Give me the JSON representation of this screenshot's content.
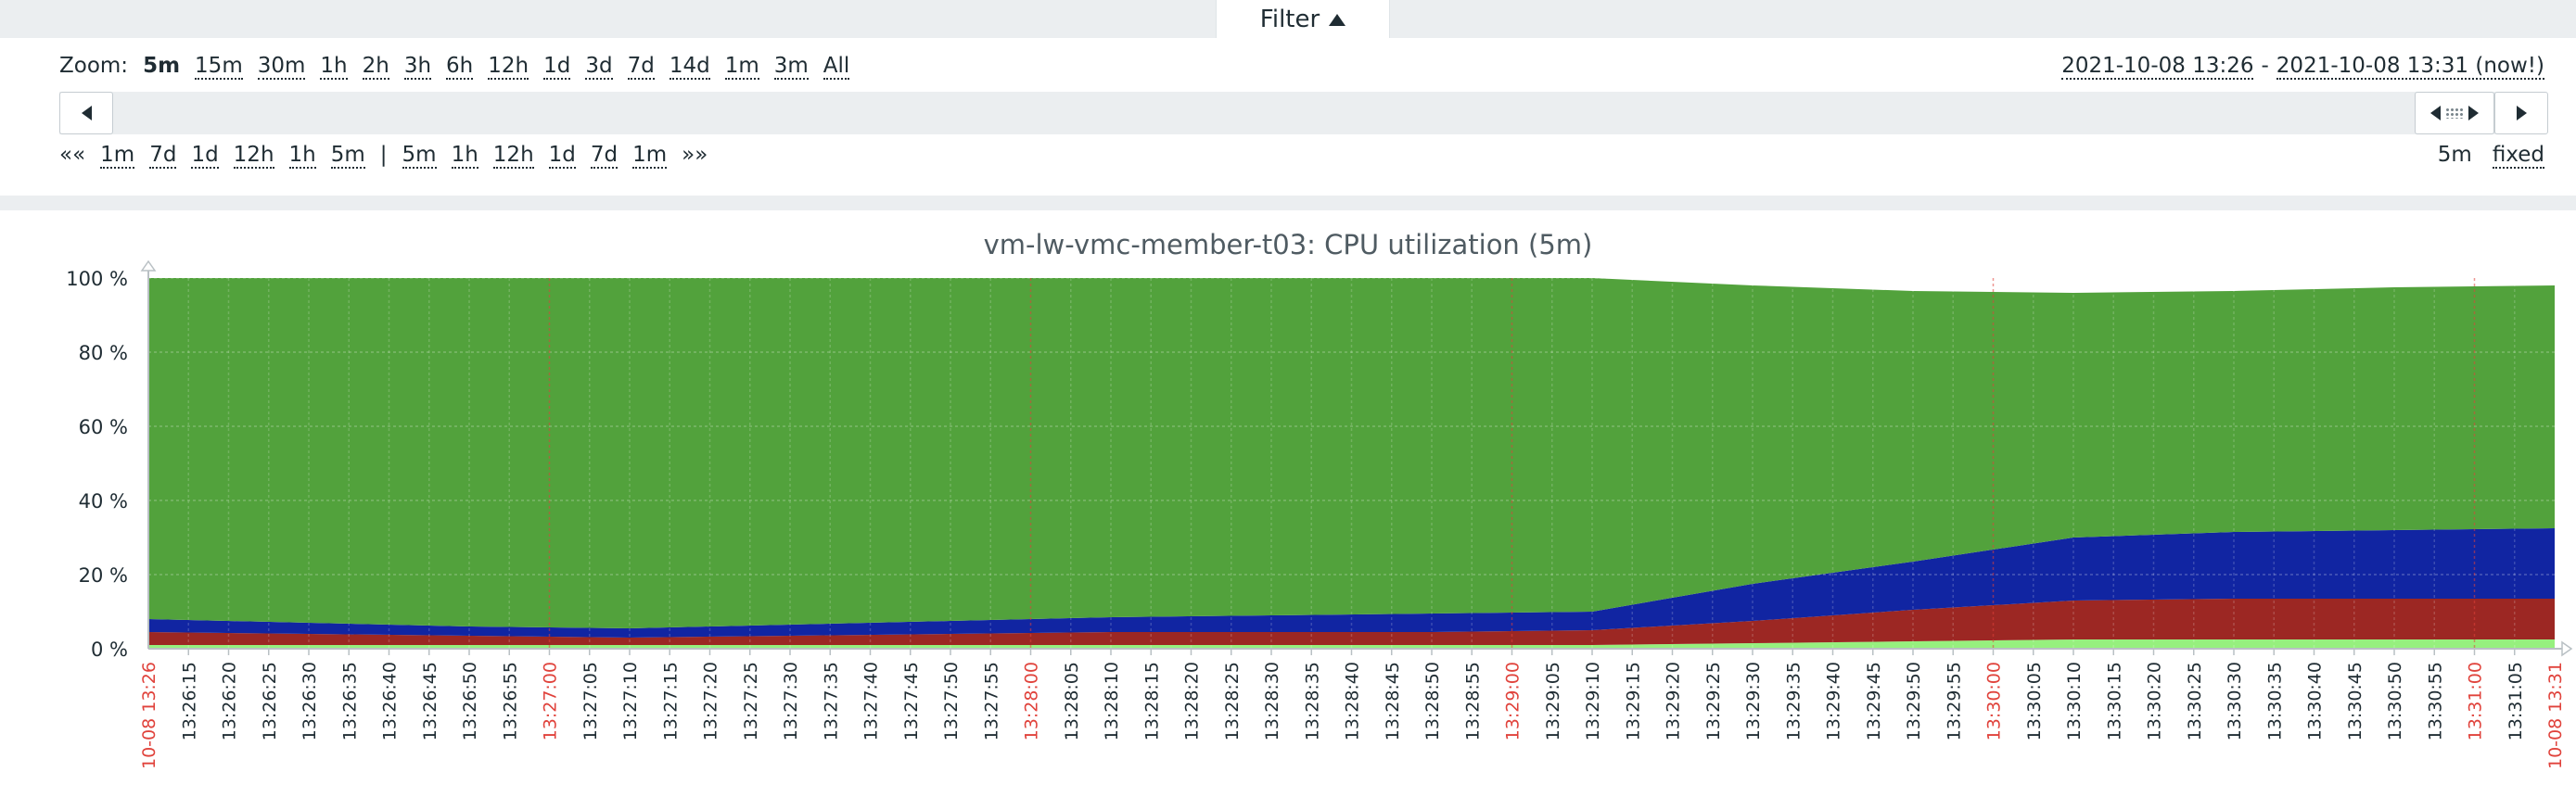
{
  "filter": {
    "label": "Filter"
  },
  "zoom": {
    "label": "Zoom:",
    "options": [
      "5m",
      "15m",
      "30m",
      "1h",
      "2h",
      "3h",
      "6h",
      "12h",
      "1d",
      "3d",
      "7d",
      "14d",
      "1m",
      "3m",
      "All"
    ],
    "selected": "5m"
  },
  "range": {
    "from": "2021-10-08 13:26",
    "separator": "-",
    "to": "2021-10-08 13:31 (now!)"
  },
  "period_nav": {
    "back_all": "««",
    "back": [
      "1m",
      "7d",
      "1d",
      "12h",
      "1h",
      "5m"
    ],
    "divider": "|",
    "forward": [
      "5m",
      "1h",
      "12h",
      "1d",
      "7d",
      "1m"
    ],
    "forward_all": "»»"
  },
  "period": {
    "value": "5m",
    "mode": "fixed"
  },
  "colors": {
    "steal": "#96F07E",
    "system": "#9C2723",
    "user": "#1125A2",
    "idle": "#52A23C",
    "text": "#1F2C33",
    "highlight_tick": "#E0423B",
    "band": "#EBEEF0"
  },
  "chart_data": {
    "type": "area",
    "title": "vm-lw-vmc-member-t03: CPU utilization (5m)",
    "stacked": true,
    "ylim": [
      0,
      100
    ],
    "y_ticks": [
      "0 %",
      "20 %",
      "40 %",
      "60 %",
      "80 %",
      "100 %"
    ],
    "x_range": [
      "13:26:10",
      "13:31:10"
    ],
    "x_start_label": "10-08 13:26",
    "x_end_label": "10-08 13:31",
    "x_tick_labels": [
      "13:26:15",
      "13:26:20",
      "13:26:25",
      "13:26:30",
      "13:26:35",
      "13:26:40",
      "13:26:45",
      "13:26:50",
      "13:26:55",
      "13:27:00",
      "13:27:05",
      "13:27:10",
      "13:27:15",
      "13:27:20",
      "13:27:25",
      "13:27:30",
      "13:27:35",
      "13:27:40",
      "13:27:45",
      "13:27:50",
      "13:27:55",
      "13:28:00",
      "13:28:05",
      "13:28:10",
      "13:28:15",
      "13:28:20",
      "13:28:25",
      "13:28:30",
      "13:28:35",
      "13:28:40",
      "13:28:45",
      "13:28:50",
      "13:28:55",
      "13:29:00",
      "13:29:05",
      "13:29:10",
      "13:29:15",
      "13:29:20",
      "13:29:25",
      "13:29:30",
      "13:29:35",
      "13:29:40",
      "13:29:45",
      "13:29:50",
      "13:29:55",
      "13:30:00",
      "13:30:05",
      "13:30:10",
      "13:30:15",
      "13:30:20",
      "13:30:25",
      "13:30:30",
      "13:30:35",
      "13:30:40",
      "13:30:45",
      "13:30:50",
      "13:30:55",
      "13:31:00",
      "13:31:05"
    ],
    "highlight_ticks": [
      "13:27:00",
      "13:28:00",
      "13:29:00",
      "13:30:00",
      "13:31:00"
    ],
    "x": [
      "13:26:10",
      "13:26:30",
      "13:26:50",
      "13:27:10",
      "13:27:30",
      "13:27:50",
      "13:28:10",
      "13:28:30",
      "13:28:50",
      "13:29:10",
      "13:29:30",
      "13:29:50",
      "13:30:10",
      "13:30:30",
      "13:30:50",
      "13:31:10"
    ],
    "series": [
      {
        "color": "#96F07E",
        "values": [
          1.0,
          1.0,
          1.0,
          1.0,
          1.0,
          1.0,
          1.0,
          1.0,
          1.0,
          1.0,
          1.5,
          2.0,
          2.5,
          2.5,
          2.5,
          2.5
        ]
      },
      {
        "color": "#9C2723",
        "values": [
          3.5,
          3.0,
          2.5,
          2.0,
          2.5,
          3.0,
          3.5,
          3.5,
          3.5,
          4.0,
          6.0,
          8.5,
          10.5,
          11.0,
          11.0,
          11.0
        ]
      },
      {
        "color": "#1125A2",
        "values": [
          3.5,
          3.0,
          2.5,
          2.5,
          3.0,
          3.5,
          4.0,
          4.5,
          5.0,
          5.0,
          10.0,
          13.0,
          17.0,
          18.0,
          18.5,
          19.0
        ]
      },
      {
        "color": "#52A23C",
        "values": [
          92.0,
          93.0,
          94.0,
          94.5,
          93.5,
          92.5,
          91.5,
          91.0,
          90.5,
          90.0,
          80.5,
          73.0,
          66.0,
          65.0,
          65.5,
          65.5
        ]
      }
    ],
    "grid": true,
    "legend": "none"
  }
}
